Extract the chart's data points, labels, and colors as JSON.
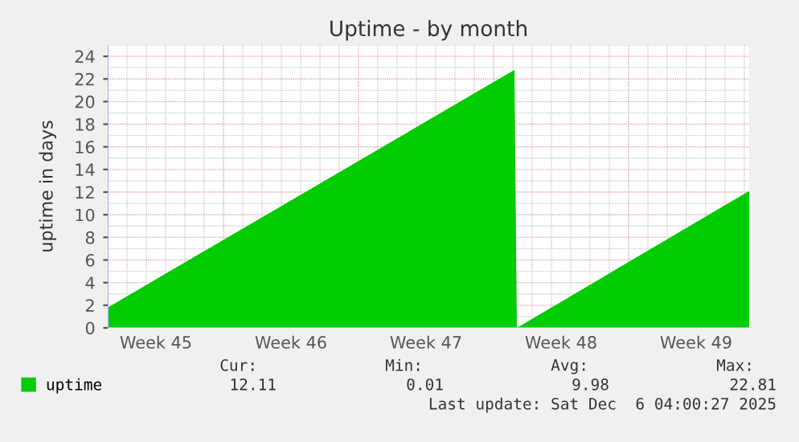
{
  "chart_data": {
    "type": "area",
    "title": "Uptime - by month",
    "ylabel": "uptime in days",
    "series": [
      {
        "name": "uptime",
        "color": "#00cc00",
        "x": [
          "2025-11-04T00:00",
          "2025-11-25T02:00",
          "2025-11-25T05:00",
          "2025-12-07T06:00"
        ],
        "values": [
          1.8,
          22.8,
          0.0,
          12.1
        ]
      }
    ],
    "xlim": [
      "2025-11-04T00:00",
      "2025-12-07T06:00"
    ],
    "xticks": [
      {
        "value": "2025-11-06T12:00",
        "label": "Week 45"
      },
      {
        "value": "2025-11-13T12:00",
        "label": "Week 46"
      },
      {
        "value": "2025-11-20T12:00",
        "label": "Week 47"
      },
      {
        "value": "2025-11-27T12:00",
        "label": "Week 48"
      },
      {
        "value": "2025-12-04T12:00",
        "label": "Week 49"
      }
    ],
    "ylim": [
      0,
      25
    ],
    "yticks": [
      0,
      2,
      4,
      6,
      8,
      10,
      12,
      14,
      16,
      18,
      20,
      22,
      24
    ],
    "grid": true,
    "legend": "bottom left",
    "annotations": [
      "Cur:",
      "Min:",
      "Avg:",
      "Max:",
      "12.11",
      "0.01",
      "9.98",
      "22.81",
      "Last update: Sat Dec  6 04:00:27 2025"
    ]
  }
}
